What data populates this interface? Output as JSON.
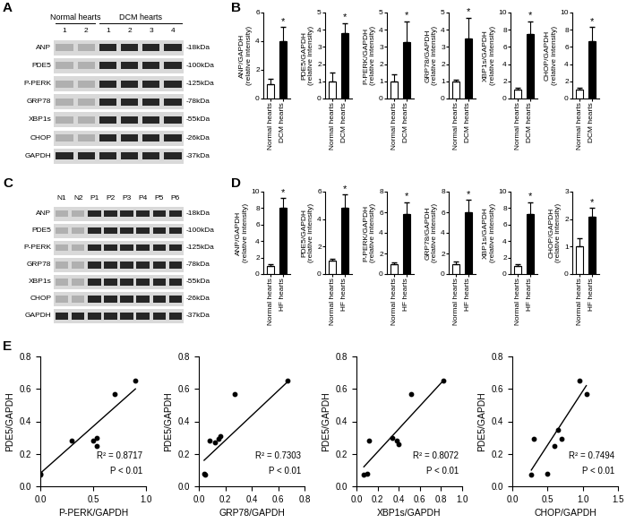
{
  "panel_labels": [
    "A",
    "B",
    "C",
    "D",
    "E"
  ],
  "blots": [
    {
      "groups": [
        {
          "label": "Normal hearts",
          "lanes": [
            "1",
            "2"
          ]
        },
        {
          "label": "DCM hearts",
          "lanes": [
            "1",
            "2",
            "3",
            "4"
          ]
        }
      ],
      "rows": [
        {
          "protein": "ANP",
          "size": "-18kDa"
        },
        {
          "protein": "PDE5",
          "size": "-100kDa"
        },
        {
          "protein": "P-PERK",
          "size": "-125kDa"
        },
        {
          "protein": "GRP78",
          "size": "-78kDa"
        },
        {
          "protein": "XBP1s",
          "size": "-55kDa"
        },
        {
          "protein": "CHOP",
          "size": "-26kDa"
        },
        {
          "protein": "GAPDH",
          "size": "-37kDa"
        }
      ]
    },
    {
      "groups": [
        {
          "lanes": [
            "N1",
            "N2"
          ]
        },
        {
          "lanes": [
            "P1",
            "P2",
            "P3",
            "P4",
            "P5",
            "P6"
          ]
        }
      ],
      "rows": [
        {
          "protein": "ANP",
          "size": "-18kDa"
        },
        {
          "protein": "PDE5",
          "size": "-100kDa"
        },
        {
          "protein": "P-PERK",
          "size": "-125kDa"
        },
        {
          "protein": "GRP78",
          "size": "-78kDa"
        },
        {
          "protein": "XBP1s",
          "size": "-55kDa"
        },
        {
          "protein": "CHOP",
          "size": "-26kDa"
        },
        {
          "protein": "GAPDH",
          "size": "-37kDa"
        }
      ]
    }
  ],
  "chart_data": [
    {
      "type": "bar",
      "categories": [
        "Normal hearts",
        "DCM hearts"
      ],
      "values": [
        1,
        4
      ],
      "errors": [
        0.4,
        1.0
      ],
      "colors": [
        "#ffffff",
        "#000000"
      ],
      "ylabel": "ANP/GAPDH\n(relative intensity)",
      "ylim": [
        0,
        6
      ],
      "yticks": [
        0,
        2,
        4,
        6
      ],
      "annotations": [
        {
          "text": "*",
          "category": "DCM hearts"
        }
      ]
    },
    {
      "type": "bar",
      "categories": [
        "Normal hearts",
        "DCM hearts"
      ],
      "values": [
        1,
        3.8
      ],
      "errors": [
        0.5,
        0.6
      ],
      "colors": [
        "#ffffff",
        "#000000"
      ],
      "ylabel": "PDE5/GAPDH\n(relative intensity)",
      "ylim": [
        0,
        5
      ],
      "yticks": [
        0,
        1,
        2,
        3,
        4,
        5
      ],
      "annotations": [
        {
          "text": "*",
          "category": "DCM hearts"
        }
      ]
    },
    {
      "type": "bar",
      "categories": [
        "Normal hearts",
        "DCM hearts"
      ],
      "values": [
        1,
        3.3
      ],
      "errors": [
        0.4,
        1.2
      ],
      "colors": [
        "#ffffff",
        "#000000"
      ],
      "ylabel": "P-PERK/GAPDH\n(relative intensity)",
      "ylim": [
        0,
        5
      ],
      "yticks": [
        0,
        1,
        2,
        3,
        4,
        5
      ],
      "annotations": [
        {
          "text": "*",
          "category": "DCM hearts"
        }
      ]
    },
    {
      "type": "bar",
      "categories": [
        "Normal hearts",
        "DCM hearts"
      ],
      "values": [
        1,
        3.5
      ],
      "errors": [
        0.1,
        1.2
      ],
      "colors": [
        "#ffffff",
        "#000000"
      ],
      "ylabel": "GRP78/GAPDH\n(relative intensity)",
      "ylim": [
        0,
        5
      ],
      "yticks": [
        0,
        1,
        2,
        3,
        4,
        5
      ],
      "annotations": [
        {
          "text": "*",
          "category": "DCM hearts"
        }
      ]
    },
    {
      "type": "bar",
      "categories": [
        "Normal hearts",
        "DCM hearts"
      ],
      "values": [
        1,
        7.5
      ],
      "errors": [
        0.2,
        1.5
      ],
      "colors": [
        "#ffffff",
        "#000000"
      ],
      "ylabel": "XBP1s/GAPDH\n(relative intensity)",
      "ylim": [
        0,
        10
      ],
      "yticks": [
        0,
        2,
        4,
        6,
        8,
        10
      ],
      "annotations": [
        {
          "text": "*",
          "category": "DCM hearts"
        }
      ]
    },
    {
      "type": "bar",
      "categories": [
        "Normal hearts",
        "DCM hearts"
      ],
      "values": [
        1,
        6.7
      ],
      "errors": [
        0.2,
        1.6
      ],
      "colors": [
        "#ffffff",
        "#000000"
      ],
      "ylabel": "CHOP/GAPDH\n(relative intensity)",
      "ylim": [
        0,
        10
      ],
      "yticks": [
        0,
        2,
        4,
        6,
        8,
        10
      ],
      "annotations": [
        {
          "text": "*",
          "category": "DCM hearts"
        }
      ]
    },
    {
      "type": "bar",
      "categories": [
        "Normal hearts",
        "HF hearts"
      ],
      "values": [
        1,
        8
      ],
      "errors": [
        0.2,
        1.2
      ],
      "colors": [
        "#ffffff",
        "#000000"
      ],
      "ylabel": "ANP/GAPDH\n(relative intensity)",
      "ylim": [
        0,
        10
      ],
      "yticks": [
        0,
        2,
        4,
        6,
        8,
        10
      ],
      "annotations": [
        {
          "text": "*",
          "category": "HF hearts"
        }
      ]
    },
    {
      "type": "bar",
      "categories": [
        "Normal hearts",
        "HF hearts"
      ],
      "values": [
        1,
        4.8
      ],
      "errors": [
        0.1,
        1.0
      ],
      "colors": [
        "#ffffff",
        "#000000"
      ],
      "ylabel": "PDE5/GAPDH\n(relative intensity)",
      "ylim": [
        0,
        6
      ],
      "yticks": [
        0,
        2,
        4,
        6
      ],
      "annotations": [
        {
          "text": "*",
          "category": "HF hearts"
        }
      ]
    },
    {
      "type": "bar",
      "categories": [
        "Normal hearts",
        "HF hearts"
      ],
      "values": [
        1,
        5.8
      ],
      "errors": [
        0.1,
        1.2
      ],
      "colors": [
        "#ffffff",
        "#000000"
      ],
      "ylabel": "P-PERK/GAPDH\n(relative intensity)",
      "ylim": [
        0,
        8
      ],
      "yticks": [
        0,
        2,
        4,
        6,
        8
      ],
      "annotations": [
        {
          "text": "*",
          "category": "HF hearts"
        }
      ]
    },
    {
      "type": "bar",
      "categories": [
        "Normal hearts",
        "HF hearts"
      ],
      "values": [
        1,
        6
      ],
      "errors": [
        0.2,
        1.2
      ],
      "colors": [
        "#ffffff",
        "#000000"
      ],
      "ylabel": "GRP78/GAPDH\n(relative intensity)",
      "ylim": [
        0,
        8
      ],
      "yticks": [
        0,
        2,
        4,
        6,
        8
      ],
      "annotations": [
        {
          "text": "*",
          "category": "HF hearts"
        }
      ]
    },
    {
      "type": "bar",
      "categories": [
        "Normal hearts",
        "HF hearts"
      ],
      "values": [
        1,
        7.3
      ],
      "errors": [
        0.2,
        1.4
      ],
      "colors": [
        "#ffffff",
        "#000000"
      ],
      "ylabel": "XBP1s/GAPDH\n(relative intensity)",
      "ylim": [
        0,
        10
      ],
      "yticks": [
        0,
        2,
        4,
        6,
        8,
        10
      ],
      "annotations": [
        {
          "text": "*",
          "category": "HF hearts"
        }
      ]
    },
    {
      "type": "bar",
      "categories": [
        "Normal hearts",
        "HF hearts"
      ],
      "values": [
        1,
        2.1
      ],
      "errors": [
        0.3,
        0.3
      ],
      "colors": [
        "#ffffff",
        "#000000"
      ],
      "ylabel": "CHOP/GAPDH\n(relative intensity)",
      "ylim": [
        0,
        3
      ],
      "yticks": [
        0,
        1,
        2,
        3
      ],
      "annotations": [
        {
          "text": "*",
          "category": "HF hearts"
        }
      ]
    },
    {
      "type": "scatter",
      "xlabel": "P-PERK/GAPDH",
      "ylabel": "PDE5/GAPDH",
      "xlim": [
        0,
        1.0
      ],
      "xticks": [
        {
          "value": 0,
          "label": "0.0"
        },
        {
          "value": 0.5,
          "label": "0.5"
        },
        {
          "value": 1.0,
          "label": "1.0"
        }
      ],
      "ylim": [
        0,
        0.8
      ],
      "yticks": [
        {
          "value": 0,
          "label": "0.0"
        },
        0.2,
        0.4,
        0.6,
        0.8
      ],
      "series": [
        {
          "type": "scatter",
          "color": "#000000",
          "x": [
            0.0,
            0.0,
            0.3,
            0.5,
            0.53,
            0.53,
            0.7,
            0.9
          ],
          "values": [
            0.07,
            0.08,
            0.28,
            0.28,
            0.25,
            0.3,
            0.57,
            0.65
          ]
        },
        {
          "type": "line",
          "color": "#000000",
          "x": [
            0.0,
            0.9
          ],
          "values": [
            0.08,
            0.6
          ]
        }
      ],
      "annotations": [
        "R² = 0.8717",
        "P < 0.01"
      ]
    },
    {
      "type": "scatter",
      "xlabel": "GRP78/GAPDH",
      "ylabel": "PDE5/GAPDH",
      "xlim": [
        0,
        0.8
      ],
      "xticks": [
        {
          "value": 0,
          "label": "0.0"
        },
        0.2,
        0.4,
        0.6,
        0.8
      ],
      "ylim": [
        0,
        0.8
      ],
      "yticks": [
        {
          "value": 0,
          "label": "0.0"
        },
        0.2,
        0.4,
        0.6,
        0.8
      ],
      "series": [
        {
          "type": "scatter",
          "color": "#000000",
          "x": [
            0.04,
            0.05,
            0.08,
            0.12,
            0.15,
            0.16,
            0.27,
            0.67
          ],
          "values": [
            0.08,
            0.07,
            0.28,
            0.27,
            0.29,
            0.31,
            0.57,
            0.65
          ]
        },
        {
          "type": "line",
          "color": "#000000",
          "x": [
            0.04,
            0.68
          ],
          "values": [
            0.16,
            0.65
          ]
        }
      ],
      "annotations": [
        "R² = 0.7303",
        "P < 0.01"
      ]
    },
    {
      "type": "scatter",
      "xlabel": "XBP1s/GAPDH",
      "ylabel": "PDE5/GAPDH",
      "xlim": [
        0,
        1.0
      ],
      "xticks": [
        {
          "value": 0,
          "label": "0.0"
        },
        0.2,
        0.4,
        0.6,
        0.8,
        {
          "value": 1.0,
          "label": "1.0"
        }
      ],
      "ylim": [
        0,
        0.8
      ],
      "yticks": [
        {
          "value": 0,
          "label": "0.0"
        },
        0.2,
        0.4,
        0.6,
        0.8
      ],
      "series": [
        {
          "type": "scatter",
          "color": "#000000",
          "x": [
            0.07,
            0.1,
            0.12,
            0.34,
            0.38,
            0.4,
            0.52,
            0.82
          ],
          "values": [
            0.07,
            0.08,
            0.28,
            0.3,
            0.28,
            0.26,
            0.57,
            0.65
          ]
        },
        {
          "type": "line",
          "color": "#000000",
          "x": [
            0.07,
            0.82
          ],
          "values": [
            0.12,
            0.65
          ]
        }
      ],
      "annotations": [
        "R² = 0.8072",
        "P < 0.01"
      ]
    },
    {
      "type": "scatter",
      "xlabel": "CHOP/GAPDH",
      "ylabel": "PDE5/GAPDH",
      "xlim": [
        0,
        1.5
      ],
      "xticks": [
        {
          "value": 0,
          "label": "0.0"
        },
        0.5,
        {
          "value": 1.0,
          "label": "1.0"
        },
        1.5
      ],
      "ylim": [
        0,
        0.8
      ],
      "yticks": [
        {
          "value": 0,
          "label": "0.0"
        },
        0.2,
        0.4,
        0.6,
        0.8
      ],
      "series": [
        {
          "type": "scatter",
          "color": "#000000",
          "x": [
            0.27,
            0.3,
            0.5,
            0.6,
            0.65,
            0.7,
            0.95,
            1.05
          ],
          "values": [
            0.07,
            0.29,
            0.08,
            0.25,
            0.35,
            0.29,
            0.65,
            0.57
          ]
        },
        {
          "type": "line",
          "color": "#000000",
          "x": [
            0.27,
            1.05
          ],
          "values": [
            0.1,
            0.62
          ]
        }
      ],
      "annotations": [
        "R² = 0.7494",
        "P < 0.01"
      ]
    }
  ]
}
